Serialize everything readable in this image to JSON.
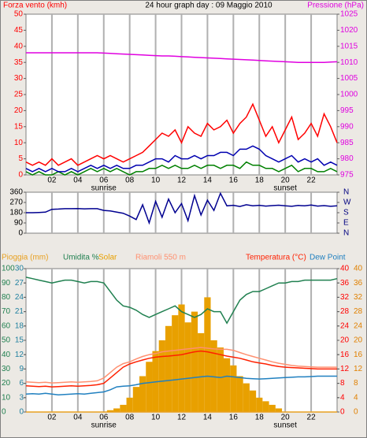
{
  "chart_data": [
    {
      "type": "line",
      "title": "24 hour graph day : 09 Maggio 2010",
      "ylabel": "Forza vento (kmh)",
      "y2label": "Pressione (hPa)",
      "ylabel_color": "#ff0000",
      "y2label_color": "#e000e0",
      "x": [
        0,
        0.5,
        1,
        1.5,
        2,
        2.5,
        3,
        3.5,
        4,
        4.5,
        5,
        5.5,
        6,
        6.5,
        7,
        7.5,
        8,
        8.5,
        9,
        9.5,
        10,
        10.5,
        11,
        11.5,
        12,
        12.5,
        13,
        13.5,
        14,
        14.5,
        15,
        15.5,
        16,
        16.5,
        17,
        17.5,
        18,
        18.5,
        19,
        19.5,
        20,
        20.5,
        21,
        21.5,
        22,
        22.5,
        23,
        23.5,
        24
      ],
      "xlim": [
        0,
        24
      ],
      "xticks": [
        {
          "value": 2,
          "label": "02"
        },
        {
          "value": 4,
          "label": "04"
        },
        {
          "value": 6,
          "label": "06"
        },
        {
          "value": 8,
          "label": "08"
        },
        {
          "value": 10,
          "label": "10"
        },
        {
          "value": 12,
          "label": "12"
        },
        {
          "value": 14,
          "label": "14"
        },
        {
          "value": 16,
          "label": "16"
        },
        {
          "value": 18,
          "label": "18"
        },
        {
          "value": 20,
          "label": "20"
        },
        {
          "value": 22,
          "label": "22"
        }
      ],
      "ylim": [
        0,
        50
      ],
      "yticks": [
        0,
        5,
        10,
        15,
        20,
        25,
        30,
        35,
        40,
        45,
        50
      ],
      "y2lim": [
        975,
        1025
      ],
      "y2ticks": [
        975,
        980,
        985,
        990,
        995,
        1000,
        1005,
        1010,
        1015,
        1020,
        1025
      ],
      "axis_colors": {
        "y": "#ff0000",
        "y2": "#e000e0"
      },
      "annotations": [
        {
          "text": "sunrise",
          "x": 6
        },
        {
          "text": "sunset",
          "x": 20
        }
      ],
      "series": [
        {
          "color": "#ff0000",
          "values": [
            4,
            3,
            4,
            3,
            5,
            3,
            4,
            5,
            3,
            4,
            5,
            6,
            5,
            6,
            5,
            4,
            5,
            6,
            7,
            9,
            11,
            13,
            12,
            14,
            10,
            15,
            13,
            12,
            16,
            14,
            15,
            17,
            13,
            16,
            18,
            22,
            17,
            12,
            15,
            10,
            14,
            18,
            11,
            13,
            16,
            12,
            19,
            15,
            10
          ]
        },
        {
          "color": "#008000",
          "values": [
            1,
            0,
            1,
            0,
            0,
            1,
            0,
            1,
            0,
            1,
            2,
            1,
            2,
            1,
            2,
            1,
            0,
            1,
            1,
            2,
            2,
            3,
            2,
            3,
            2,
            2,
            3,
            2,
            3,
            3,
            2,
            3,
            3,
            2,
            4,
            3,
            3,
            2,
            2,
            1,
            2,
            3,
            1,
            2,
            2,
            1,
            1,
            2,
            1
          ]
        },
        {
          "color": "#0000b0",
          "values": [
            2,
            1,
            2,
            1,
            2,
            1,
            1,
            2,
            1,
            2,
            3,
            2,
            3,
            2,
            3,
            2,
            2,
            3,
            3,
            4,
            5,
            5,
            4,
            6,
            5,
            5,
            6,
            5,
            6,
            6,
            7,
            7,
            6,
            8,
            8,
            9,
            8,
            6,
            5,
            4,
            5,
            6,
            4,
            5,
            4,
            5,
            3,
            4,
            3
          ]
        },
        {
          "color": "#e000e0",
          "axis": "y2",
          "values": [
            1013,
            1013,
            1013,
            1013,
            1013,
            1013,
            1013,
            1013,
            1013,
            1013,
            1013,
            1013,
            1012.9,
            1012.8,
            1012.7,
            1012.6,
            1012.5,
            1012.4,
            1012.3,
            1012.2,
            1012.1,
            1012,
            1012,
            1011.9,
            1011.8,
            1011.7,
            1011.6,
            1011.5,
            1011.4,
            1011.3,
            1011.2,
            1011.1,
            1011,
            1010.9,
            1010.8,
            1010.7,
            1010.6,
            1010.5,
            1010.4,
            1010.3,
            1010.2,
            1010.1,
            1010,
            1010,
            1010,
            1010,
            1010,
            1010.1,
            1010.2
          ]
        }
      ]
    },
    {
      "type": "line",
      "x": [
        0,
        0.5,
        1,
        1.5,
        2,
        2.5,
        3,
        3.5,
        4,
        4.5,
        5,
        5.5,
        6,
        6.5,
        7,
        7.5,
        8,
        8.5,
        9,
        9.5,
        10,
        10.5,
        11,
        11.5,
        12,
        12.5,
        13,
        13.5,
        14,
        14.5,
        15,
        15.5,
        16,
        16.5,
        17,
        17.5,
        18,
        18.5,
        19,
        19.5,
        20,
        20.5,
        21,
        21.5,
        22,
        22.5,
        23,
        23.5,
        24
      ],
      "xlim": [
        0,
        24
      ],
      "xticks": [
        2,
        4,
        6,
        8,
        10,
        12,
        14,
        16,
        18,
        20,
        22
      ],
      "ylim": [
        0,
        360
      ],
      "yticks": [
        0,
        90,
        180,
        270,
        360
      ],
      "y2lim": [
        0,
        360
      ],
      "y2ticks": [
        {
          "value": 360,
          "label": "N"
        },
        {
          "value": 270,
          "label": "W"
        },
        {
          "value": 180,
          "label": "S"
        },
        {
          "value": 90,
          "label": "E"
        },
        {
          "value": 0,
          "label": "N"
        }
      ],
      "axis_colors": {
        "y": "#000000",
        "y2": "#000080"
      },
      "series": [
        {
          "color": "#000090",
          "values": [
            180,
            180,
            182,
            185,
            210,
            212,
            215,
            215,
            216,
            214,
            215,
            215,
            200,
            195,
            185,
            175,
            150,
            120,
            250,
            90,
            280,
            140,
            300,
            180,
            260,
            110,
            330,
            160,
            290,
            200,
            350,
            240,
            245,
            235,
            250,
            240,
            245,
            238,
            242,
            246,
            240,
            236,
            244,
            240,
            248,
            238,
            242,
            236,
            240
          ]
        }
      ]
    },
    {
      "type": "line",
      "x": [
        0,
        0.5,
        1,
        1.5,
        2,
        2.5,
        3,
        3.5,
        4,
        4.5,
        5,
        5.5,
        6,
        6.5,
        7,
        7.5,
        8,
        8.5,
        9,
        9.5,
        10,
        10.5,
        11,
        11.5,
        12,
        12.5,
        13,
        13.5,
        14,
        14.5,
        15,
        15.5,
        16,
        16.5,
        17,
        17.5,
        18,
        18.5,
        19,
        19.5,
        20,
        20.5,
        21,
        21.5,
        22,
        22.5,
        23,
        23.5,
        24
      ],
      "xlim": [
        0,
        24
      ],
      "xticks": [
        {
          "value": 2,
          "label": "02"
        },
        {
          "value": 4,
          "label": "04"
        },
        {
          "value": 6,
          "label": "06"
        },
        {
          "value": 8,
          "label": "08"
        },
        {
          "value": 10,
          "label": "10"
        },
        {
          "value": 12,
          "label": "12"
        },
        {
          "value": 14,
          "label": "14"
        },
        {
          "value": 16,
          "label": "16"
        },
        {
          "value": 18,
          "label": "18"
        },
        {
          "value": 20,
          "label": "20"
        },
        {
          "value": 22,
          "label": "22"
        }
      ],
      "ylim": [
        0,
        100
      ],
      "yticks": [
        0,
        10,
        20,
        30,
        40,
        50,
        60,
        70,
        80,
        90,
        100
      ],
      "y3lim": [
        0,
        30
      ],
      "y3ticks": [
        0,
        3,
        6,
        9,
        12,
        15,
        18,
        21,
        24,
        27,
        30
      ],
      "y2lim": [
        0,
        40
      ],
      "y2ticks": [
        0,
        4,
        8,
        12,
        16,
        20,
        24,
        28,
        32,
        36,
        40
      ],
      "y4lim": [
        0,
        40
      ],
      "y4ticks": [
        0,
        4,
        8,
        12,
        16,
        20,
        24,
        28,
        32,
        36,
        40
      ],
      "axis_colors": {
        "y": "#208050",
        "y2": "#ff0000",
        "y3": "#2080a0",
        "y4": "#e08000"
      },
      "annotations": [
        {
          "text": "sunrise",
          "x": 6
        },
        {
          "text": "sunset",
          "x": 20
        }
      ],
      "series": [
        {
          "name": "Pioggia (mm)",
          "color": "#e8a020",
          "axis": "y3",
          "values": [
            0,
            0,
            0,
            0,
            0,
            0,
            0,
            0,
            0,
            0,
            0,
            0,
            0,
            0,
            0,
            0,
            0,
            0,
            0,
            0,
            0,
            0,
            0,
            0,
            0,
            0,
            0,
            0,
            0,
            0,
            0,
            0,
            0,
            0,
            0,
            0,
            0,
            0,
            0,
            0,
            0,
            0,
            0,
            0,
            0,
            0,
            0,
            0,
            0
          ]
        },
        {
          "name": "Umidita %",
          "color": "#208050",
          "values": [
            94,
            93,
            92,
            91,
            90,
            91,
            92,
            92,
            91,
            90,
            91,
            91,
            90,
            84,
            78,
            74,
            73,
            71,
            68,
            66,
            68,
            70,
            72,
            74,
            70,
            68,
            66,
            68,
            72,
            70,
            70,
            62,
            70,
            78,
            82,
            84,
            84,
            86,
            88,
            90,
            90,
            91,
            91,
            92,
            92,
            92,
            92,
            92,
            93
          ]
        },
        {
          "name": "Solar",
          "color": "#e8a000",
          "axis": "y4",
          "style": "bar",
          "values": [
            0,
            0,
            0,
            0,
            0,
            0,
            0,
            0,
            0,
            0,
            0,
            0,
            0,
            0.5,
            1,
            2,
            4,
            7,
            10,
            14,
            17,
            20,
            24,
            27,
            30,
            25,
            28,
            22,
            32,
            20,
            18,
            15,
            13,
            10,
            8,
            6,
            4,
            3,
            2,
            1,
            0,
            0,
            0,
            0,
            0,
            0,
            0,
            0,
            0
          ]
        },
        {
          "name": "Riamoli 550 m",
          "color": "#ff9070",
          "axis": "y2",
          "values": [
            8.4,
            8.3,
            8.2,
            8.3,
            8.1,
            8.2,
            8.3,
            8.4,
            8.3,
            8.4,
            8.5,
            8.7,
            9.5,
            11,
            12.5,
            13.5,
            14,
            14.8,
            15.5,
            16,
            16.3,
            16.8,
            17,
            17.2,
            17.4,
            17.6,
            17.8,
            18,
            17.8,
            17.6,
            17.5,
            17.5,
            17.2,
            16.6,
            16,
            15.5,
            15,
            14.5,
            14,
            13.6,
            13.3,
            13,
            12.8,
            12.7,
            12.6,
            12.5,
            12.5,
            12.5,
            12.5
          ]
        },
        {
          "name": "Temperatura (°C)",
          "color": "#ff2000",
          "axis": "y2",
          "values": [
            7.3,
            7.2,
            7.1,
            7.2,
            7.0,
            7.1,
            7.2,
            7.3,
            7.2,
            7.3,
            7.4,
            7.6,
            8.0,
            9.5,
            11,
            12.5,
            13.4,
            14,
            14.5,
            15,
            15.3,
            15.5,
            15.6,
            15.8,
            16,
            16.4,
            16.8,
            17,
            16.8,
            16.4,
            16,
            15.6,
            15.3,
            15,
            14.5,
            14,
            13.7,
            13.4,
            13,
            12.7,
            12.5,
            12.4,
            12.3,
            12.2,
            12.1,
            12,
            12,
            12,
            12
          ]
        },
        {
          "name": "Dew Point",
          "color": "#2080c0",
          "axis": "y2",
          "values": [
            5,
            5.1,
            5,
            5.2,
            5,
            4.8,
            4.9,
            5,
            5.1,
            5,
            5.2,
            5.4,
            5.6,
            6.2,
            7,
            7.2,
            7.3,
            7.6,
            8,
            8.2,
            8.4,
            8.6,
            8.8,
            9,
            9.2,
            9.4,
            9.6,
            9.8,
            10,
            9.8,
            9.6,
            10,
            9.8,
            9.6,
            9.4,
            9.3,
            9.2,
            9.3,
            9.4,
            9.5,
            9.6,
            9.7,
            9.8,
            9.8,
            9.9,
            10,
            10,
            10,
            10
          ]
        }
      ]
    }
  ]
}
